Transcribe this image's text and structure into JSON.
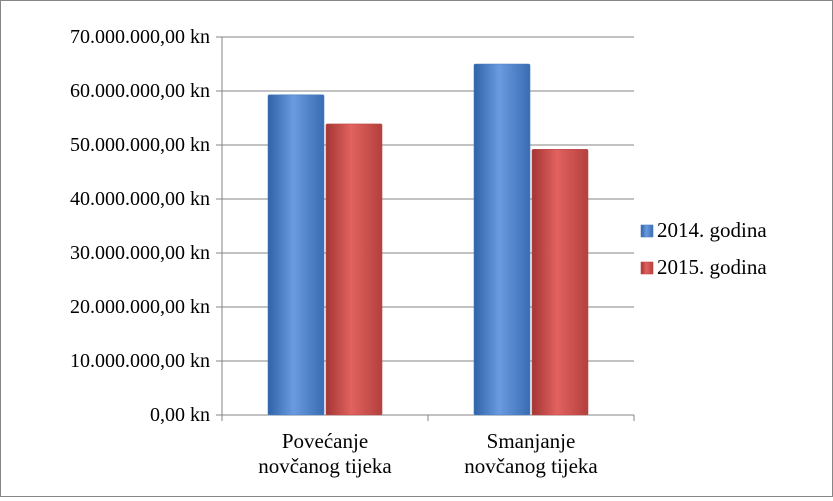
{
  "chart_data": {
    "type": "bar",
    "title": "",
    "xlabel": "",
    "ylabel": "",
    "categories": [
      [
        "Povećanje",
        "novčanog tijeka"
      ],
      [
        "Smanjanje",
        "novčanog tijeka"
      ]
    ],
    "series": [
      {
        "name": "2014. godina",
        "values": [
          59300000,
          65000000
        ],
        "color": "#4a7ebb"
      },
      {
        "name": "2015. godina",
        "values": [
          53900000,
          49200000
        ],
        "color": "#be4b48"
      }
    ],
    "ylim": [
      0,
      70000000
    ],
    "yticks": [
      "0,00 kn",
      "10.000.000,00 kn",
      "20.000.000,00 kn",
      "30.000.000,00 kn",
      "40.000.000,00 kn",
      "50.000.000,00 kn",
      "60.000.000,00 kn",
      "70.000.000,00 kn"
    ],
    "grid": true,
    "legend_position": "right"
  }
}
